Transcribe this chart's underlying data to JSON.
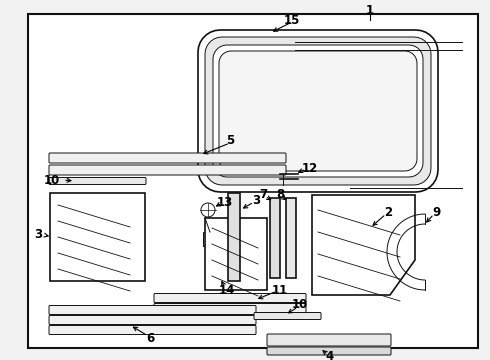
{
  "bg_color": "#f2f2f2",
  "border_color": "#111111",
  "line_color": "#111111",
  "fig_w": 4.9,
  "fig_h": 3.6,
  "dpi": 100
}
